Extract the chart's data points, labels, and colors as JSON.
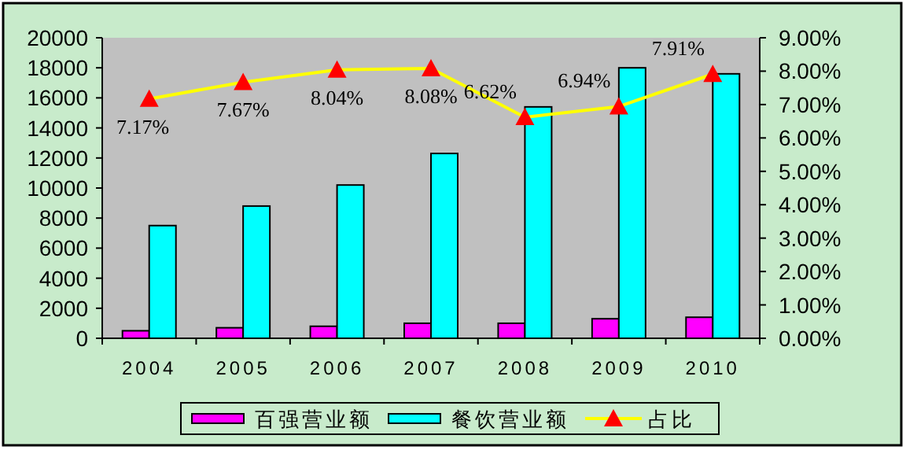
{
  "chart_data": {
    "type": "bar",
    "categories": [
      "2004",
      "2005",
      "2006",
      "2007",
      "2008",
      "2009",
      "2010"
    ],
    "series": [
      {
        "name": "百强营业额",
        "color": "#ff00ff",
        "values": [
          500,
          700,
          800,
          1000,
          1000,
          1300,
          1400
        ]
      },
      {
        "name": "餐饮营业额",
        "color": "#00ffff",
        "values": [
          7500,
          8800,
          10200,
          12300,
          15400,
          18000,
          17600
        ]
      },
      {
        "name": "占比",
        "type": "line",
        "axis": "y2",
        "color": "#ffff00",
        "marker": "triangle",
        "values": [
          7.17,
          7.67,
          8.04,
          8.08,
          6.62,
          6.94,
          7.91
        ],
        "value_labels": [
          "7.17%",
          "7.67%",
          "8.04%",
          "8.08%",
          "6.62%",
          "6.94%",
          "7.91%"
        ]
      }
    ],
    "ylim": [
      0,
      20000
    ],
    "yticks": [
      0,
      2000,
      4000,
      6000,
      8000,
      10000,
      12000,
      14000,
      16000,
      18000,
      20000
    ],
    "y2lim": [
      0,
      9
    ],
    "y2ticks": [
      {
        "value": 0,
        "label": "0.00%"
      },
      {
        "value": 1,
        "label": "1.00%"
      },
      {
        "value": 2,
        "label": "2.00%"
      },
      {
        "value": 3,
        "label": "3.00%"
      },
      {
        "value": 4,
        "label": "4.00%"
      },
      {
        "value": 5,
        "label": "5.00%"
      },
      {
        "value": 6,
        "label": "6.00%"
      },
      {
        "value": 7,
        "label": "7.00%"
      },
      {
        "value": 8,
        "label": "8.00%"
      },
      {
        "value": 9,
        "label": "9.00%"
      }
    ],
    "grid": false,
    "legend": "bottom"
  }
}
